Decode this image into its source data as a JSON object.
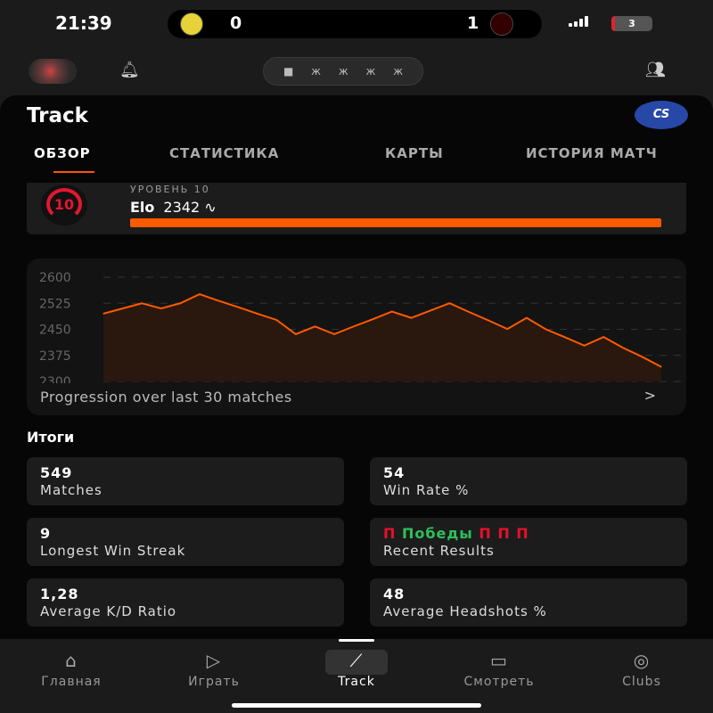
{
  "status": {
    "time": "21:39",
    "home_score": "0",
    "away_score": "1",
    "battery": "3"
  },
  "header": {
    "title": "Track",
    "badge": "CS"
  },
  "tabs": [
    {
      "label": "ОБЗОР",
      "active": true
    },
    {
      "label": "СТАТИСТИКА"
    },
    {
      "label": "КАРТЫ"
    },
    {
      "label": "ИСТОРИЯ МАТЧ"
    }
  ],
  "level": {
    "label": "УРОВЕНЬ 10",
    "level": "10",
    "elo_label": "Elo",
    "elo_value": "2342",
    "progress": 1.0
  },
  "chart_data": {
    "type": "area",
    "ylim": [
      2300,
      2600
    ],
    "yticks": [
      "2600",
      "2525",
      "2450",
      "2375",
      "2300"
    ],
    "grid": "dashed horizontal",
    "color": "#ff5a00",
    "values": [
      2495,
      2510,
      2525,
      2510,
      2525,
      2551,
      2532,
      2514,
      2495,
      2477,
      2436,
      2458,
      2436,
      2458,
      2479,
      2501,
      2483,
      2504,
      2525,
      2500,
      2476,
      2451,
      2483,
      2450,
      2427,
      2403,
      2428,
      2397,
      2371,
      2342
    ],
    "caption": "Progression over last 30 matches"
  },
  "summary": {
    "title": "Итоги",
    "cards": [
      {
        "value": "549",
        "label": "Matches"
      },
      {
        "value": "54",
        "label": "Win Rate %"
      },
      {
        "value": "9",
        "label": "Longest Win Streak"
      },
      {
        "results": [
          {
            "text": "П",
            "color": "#e8102a"
          },
          {
            "text": "Победы",
            "color": "#2ec05a"
          },
          {
            "text": "П",
            "color": "#e8102a"
          },
          {
            "text": "П",
            "color": "#e8102a"
          },
          {
            "text": "П",
            "color": "#e8102a"
          }
        ],
        "label": "Recent Results"
      },
      {
        "value": "1,28",
        "label": "Average K/D Ratio"
      },
      {
        "value": "48",
        "label": "Average Headshots %"
      }
    ]
  },
  "nav": [
    {
      "label": "Главная",
      "icon": "home-icon"
    },
    {
      "label": "Играть",
      "icon": "play-icon"
    },
    {
      "label": "Track",
      "icon": "chart-icon",
      "active": true
    },
    {
      "label": "Смотреть",
      "icon": "video-icon"
    },
    {
      "label": "Clubs",
      "icon": "clubs-icon"
    }
  ]
}
